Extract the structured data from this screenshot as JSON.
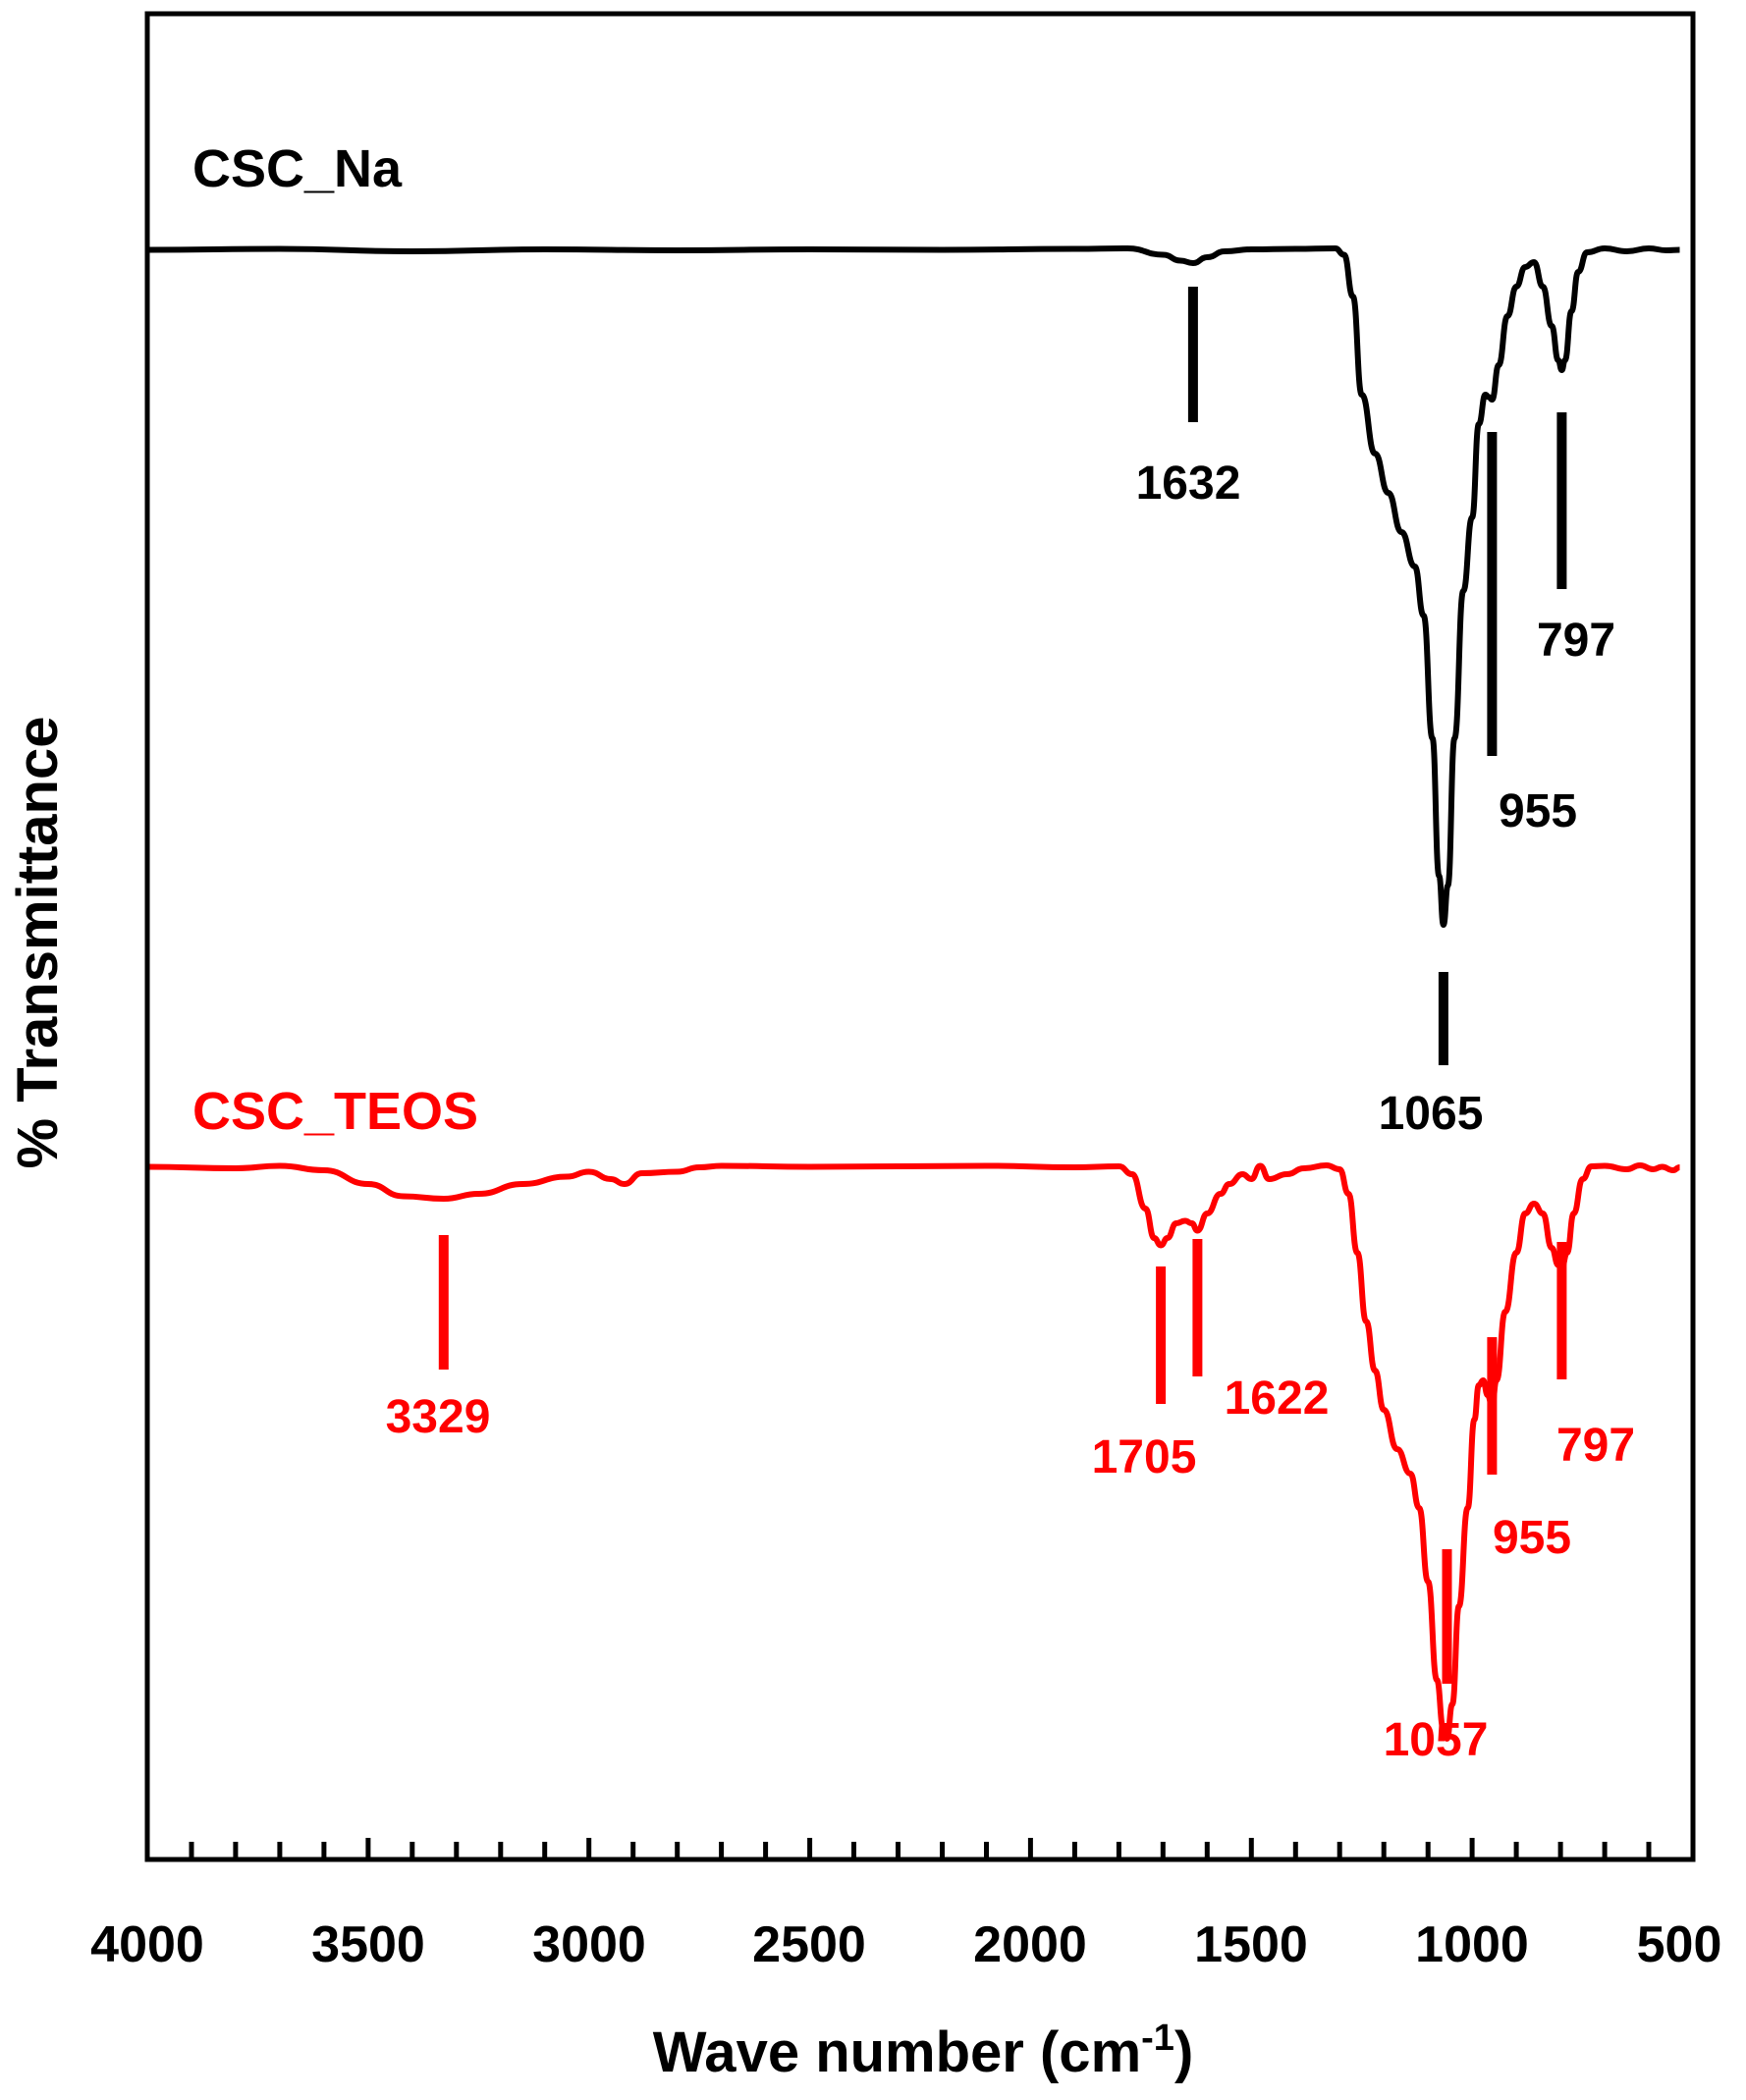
{
  "chart_data": {
    "type": "line",
    "xlabel": "Wave number (cm",
    "xlabel_sup": "-1",
    "xlabel_close": ")",
    "ylabel": "% Transmittance",
    "xlim": [
      4000,
      500
    ],
    "x_reversed": true,
    "x_ticks": [
      4000,
      3500,
      3000,
      2500,
      2000,
      1500,
      1000,
      500
    ],
    "x_minor_step": 100,
    "grid": false,
    "legend": "none",
    "series": [
      {
        "name": "CSC_Na",
        "color": "#000000",
        "points": [
          [
            4000,
            0.5
          ],
          [
            3700,
            0.3
          ],
          [
            3400,
            0.8
          ],
          [
            3100,
            0.4
          ],
          [
            2800,
            0.6
          ],
          [
            2500,
            0.4
          ],
          [
            2200,
            0.5
          ],
          [
            1900,
            0.3
          ],
          [
            1780,
            0.2
          ],
          [
            1700,
            1.5
          ],
          [
            1660,
            2.7
          ],
          [
            1632,
            3.2
          ],
          [
            1600,
            2.0
          ],
          [
            1560,
            0.8
          ],
          [
            1500,
            0.4
          ],
          [
            1400,
            0.3
          ],
          [
            1310,
            0.2
          ],
          [
            1290,
            1.5
          ],
          [
            1270,
            10
          ],
          [
            1250,
            30
          ],
          [
            1220,
            42
          ],
          [
            1190,
            50
          ],
          [
            1160,
            58
          ],
          [
            1130,
            65
          ],
          [
            1110,
            75
          ],
          [
            1090,
            100
          ],
          [
            1075,
            128
          ],
          [
            1065,
            138
          ],
          [
            1055,
            130
          ],
          [
            1040,
            100
          ],
          [
            1020,
            70
          ],
          [
            1000,
            55
          ],
          [
            985,
            36
          ],
          [
            970,
            30
          ],
          [
            962,
            30.5
          ],
          [
            955,
            31
          ],
          [
            940,
            24
          ],
          [
            920,
            14
          ],
          [
            900,
            8
          ],
          [
            880,
            4
          ],
          [
            860,
            3
          ],
          [
            840,
            8
          ],
          [
            820,
            16
          ],
          [
            805,
            23
          ],
          [
            797,
            25
          ],
          [
            790,
            23
          ],
          [
            775,
            13
          ],
          [
            760,
            5
          ],
          [
            740,
            1
          ],
          [
            700,
            0.2
          ],
          [
            650,
            0.8
          ],
          [
            600,
            0.2
          ],
          [
            560,
            0.6
          ],
          [
            530,
            0.5
          ]
        ],
        "peaks": [
          1632,
          1065,
          955,
          797
        ]
      },
      {
        "name": "CSC_TEOS",
        "color": "#ff0000",
        "points": [
          [
            4000,
            0.5
          ],
          [
            3800,
            0.8
          ],
          [
            3700,
            0.3
          ],
          [
            3600,
            1.2
          ],
          [
            3500,
            4
          ],
          [
            3420,
            6.5
          ],
          [
            3329,
            7
          ],
          [
            3250,
            6
          ],
          [
            3150,
            4
          ],
          [
            3050,
            2.5
          ],
          [
            3000,
            1.5
          ],
          [
            2950,
            3
          ],
          [
            2920,
            4
          ],
          [
            2880,
            1.8
          ],
          [
            2800,
            1.5
          ],
          [
            2750,
            0.6
          ],
          [
            2700,
            0.3
          ],
          [
            2500,
            0.5
          ],
          [
            2300,
            0.4
          ],
          [
            2100,
            0.3
          ],
          [
            1900,
            0.6
          ],
          [
            1800,
            0.4
          ],
          [
            1770,
            2
          ],
          [
            1740,
            9
          ],
          [
            1720,
            15
          ],
          [
            1705,
            16.5
          ],
          [
            1690,
            15
          ],
          [
            1670,
            12
          ],
          [
            1650,
            11.5
          ],
          [
            1635,
            12
          ],
          [
            1622,
            13.5
          ],
          [
            1600,
            10
          ],
          [
            1570,
            6
          ],
          [
            1550,
            4
          ],
          [
            1520,
            2
          ],
          [
            1500,
            3
          ],
          [
            1480,
            0.3
          ],
          [
            1460,
            3
          ],
          [
            1420,
            2
          ],
          [
            1380,
            0.8
          ],
          [
            1330,
            0.2
          ],
          [
            1300,
            1
          ],
          [
            1280,
            6
          ],
          [
            1260,
            18
          ],
          [
            1240,
            32
          ],
          [
            1220,
            42
          ],
          [
            1200,
            50
          ],
          [
            1170,
            58
          ],
          [
            1140,
            63
          ],
          [
            1120,
            70
          ],
          [
            1100,
            85
          ],
          [
            1080,
            105
          ],
          [
            1065,
            115
          ],
          [
            1057,
            117
          ],
          [
            1045,
            110
          ],
          [
            1030,
            90
          ],
          [
            1010,
            70
          ],
          [
            995,
            52
          ],
          [
            985,
            45
          ],
          [
            975,
            44
          ],
          [
            965,
            47
          ],
          [
            955,
            49
          ],
          [
            945,
            44
          ],
          [
            925,
            30
          ],
          [
            900,
            18
          ],
          [
            880,
            10
          ],
          [
            860,
            8
          ],
          [
            840,
            10
          ],
          [
            820,
            17
          ],
          [
            805,
            20.5
          ],
          [
            797,
            21
          ],
          [
            785,
            18
          ],
          [
            770,
            10
          ],
          [
            750,
            3
          ],
          [
            730,
            0.4
          ],
          [
            700,
            0.3
          ],
          [
            650,
            1
          ],
          [
            620,
            0.2
          ],
          [
            590,
            1
          ],
          [
            570,
            0.5
          ],
          [
            545,
            1.2
          ],
          [
            530,
            0.6
          ]
        ],
        "peaks": [
          3329,
          1705,
          1622,
          1057,
          955,
          797
        ]
      }
    ]
  },
  "peak_labels": {
    "na": [
      "1632",
      "1065",
      "955",
      "797"
    ],
    "teos": [
      "3329",
      "1705",
      "1622",
      "1057",
      "955",
      "797"
    ]
  },
  "tick_labels": [
    "4000",
    "3500",
    "3000",
    "2500",
    "2000",
    "1500",
    "1000",
    "500"
  ]
}
